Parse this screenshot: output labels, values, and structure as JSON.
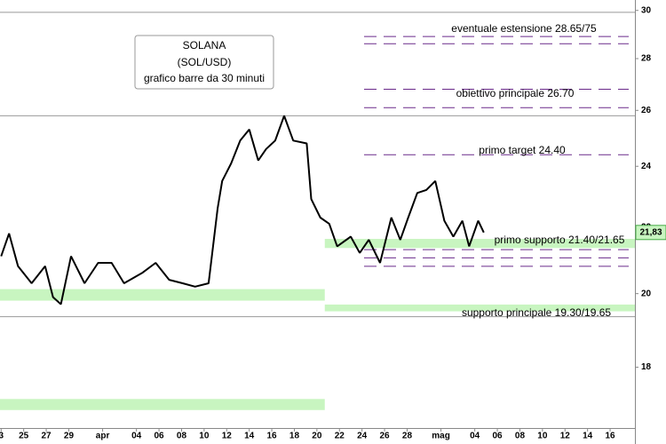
{
  "chart_data": {
    "type": "line",
    "title_lines": [
      "SOLANA",
      "(SOL/USD)",
      "grafico barre da 30 minuti"
    ],
    "log_scale": true,
    "xlim": [
      -0.1,
      56.2
    ],
    "ylim": [
      16.5,
      30.45
    ],
    "yticks": [
      30,
      28,
      26,
      24,
      22,
      20,
      18
    ],
    "xticks": [
      {
        "value": 0,
        "label": "3"
      },
      {
        "value": 2,
        "label": "25"
      },
      {
        "value": 4,
        "label": "27"
      },
      {
        "value": 6,
        "label": "29"
      },
      {
        "value": 9,
        "label": "apr"
      },
      {
        "value": 12,
        "label": "04"
      },
      {
        "value": 14,
        "label": "06"
      },
      {
        "value": 16,
        "label": "08"
      },
      {
        "value": 18,
        "label": "10"
      },
      {
        "value": 20,
        "label": "12"
      },
      {
        "value": 22,
        "label": "14"
      },
      {
        "value": 24,
        "label": "16"
      },
      {
        "value": 26,
        "label": "18"
      },
      {
        "value": 28,
        "label": "20"
      },
      {
        "value": 30,
        "label": "22"
      },
      {
        "value": 32,
        "label": "24"
      },
      {
        "value": 34,
        "label": "26"
      },
      {
        "value": 36,
        "label": "28"
      },
      {
        "value": 39,
        "label": "mag"
      },
      {
        "value": 42,
        "label": "04"
      },
      {
        "value": 44,
        "label": "06"
      },
      {
        "value": 46,
        "label": "08"
      },
      {
        "value": 48,
        "label": "10"
      },
      {
        "value": 50,
        "label": "12"
      },
      {
        "value": 52,
        "label": "14"
      },
      {
        "value": 54,
        "label": "16"
      }
    ],
    "price": {
      "color": "#000000",
      "x": [
        0,
        0.7,
        1.5,
        2.7,
        3.9,
        4.6,
        5.3,
        6.2,
        7.4,
        8.6,
        9.8,
        10.9,
        12.5,
        13.7,
        14.9,
        16.1,
        17.2,
        18.4,
        19.2,
        19.6,
        20.4,
        21.2,
        22,
        22.8,
        23.5,
        24.3,
        25.1,
        25.9,
        27.1,
        27.5,
        28.3,
        29.1,
        29.8,
        31,
        31.8,
        32.6,
        33.6,
        34.6,
        35.4,
        36.1,
        36.9,
        37.7,
        38.5,
        39.3,
        40.1,
        40.9,
        41.5,
        42.3,
        42.8
      ],
      "values": [
        21.1,
        21.8,
        20.8,
        20.3,
        20.8,
        19.9,
        19.7,
        21.1,
        20.3,
        20.9,
        20.9,
        20.3,
        20.6,
        20.9,
        20.4,
        20.3,
        20.2,
        20.3,
        22.6,
        23.5,
        24.1,
        24.9,
        25.3,
        24.2,
        24.6,
        24.9,
        25.8,
        24.9,
        24.8,
        22.9,
        22.3,
        22.1,
        21.4,
        21.7,
        21.2,
        21.6,
        20.9,
        22.3,
        21.6,
        22.3,
        23.1,
        23.2,
        23.5,
        22.2,
        21.7,
        22.2,
        21.4,
        22.2,
        21.83
      ]
    },
    "last_price": {
      "value": 21.83,
      "label": "21,83"
    },
    "bands": [
      {
        "low": 19.8,
        "high": 20.13,
        "from": -0.1,
        "to": 28.7,
        "color": "#c8f5c0"
      },
      {
        "low": 21.35,
        "high": 21.63,
        "from": 28.7,
        "to": 56.2,
        "color": "#c8f5c0"
      },
      {
        "low": 19.5,
        "high": 19.69,
        "from": 28.7,
        "to": 56.2,
        "color": "#c8f5c0"
      },
      {
        "low": 16.93,
        "high": 17.2,
        "from": -0.1,
        "to": 28.7,
        "color": "#c8f5c0"
      }
    ],
    "solid_levels": [
      29.92,
      25.8,
      19.35
    ],
    "dashed_levels": [
      28.9,
      28.6,
      26.8,
      26.1,
      24.4,
      21.3,
      21.05,
      20.8
    ],
    "dashed_color": "#6a2a8a",
    "annotations": [
      "eventuale estensione 28.65/75",
      "obiettivo principale 26.70",
      "primo target 24.40",
      "primo supporto 21.40/21.65",
      "supporto principale 19.30/19.65"
    ]
  }
}
